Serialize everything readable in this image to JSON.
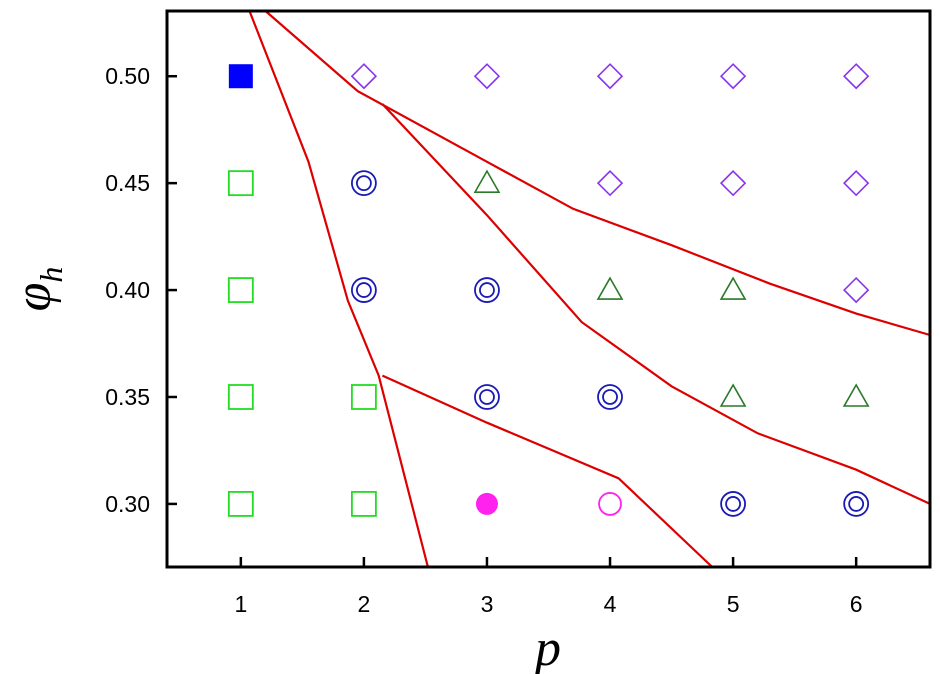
{
  "chart_data": {
    "type": "scatter",
    "title": "",
    "xlabel": "p",
    "ylabel_main": "φ",
    "ylabel_sub": "h",
    "xlim": [
      0.4,
      6.6
    ],
    "ylim": [
      0.2705,
      0.5305
    ],
    "xticks": [
      1,
      2,
      3,
      4,
      5,
      6
    ],
    "xtick_labels": [
      "1",
      "2",
      "3",
      "4",
      "5",
      "6"
    ],
    "yticks": [
      0.3,
      0.35,
      0.4,
      0.45,
      0.5
    ],
    "ytick_labels": [
      "0.30",
      "0.35",
      "0.40",
      "0.45",
      "0.50"
    ],
    "grid": false,
    "legend": "none",
    "series": [
      {
        "marker": "filled-square",
        "color": "#0000ff",
        "points": [
          [
            1,
            0.5
          ]
        ]
      },
      {
        "marker": "open-square",
        "color": "#22dd22",
        "points": [
          [
            1,
            0.45
          ],
          [
            1,
            0.4
          ],
          [
            1,
            0.35
          ],
          [
            1,
            0.3
          ],
          [
            2,
            0.35
          ],
          [
            2,
            0.3
          ]
        ]
      },
      {
        "marker": "double-circle",
        "color": "#1a1ab4",
        "points": [
          [
            2,
            0.45
          ],
          [
            2,
            0.4
          ],
          [
            3,
            0.4
          ],
          [
            3,
            0.35
          ],
          [
            4,
            0.35
          ],
          [
            5,
            0.3
          ],
          [
            6,
            0.3
          ]
        ]
      },
      {
        "marker": "open-triangle",
        "color": "#2a7a2a",
        "points": [
          [
            3,
            0.45
          ],
          [
            4,
            0.4
          ],
          [
            5,
            0.4
          ],
          [
            5,
            0.35
          ],
          [
            6,
            0.35
          ]
        ]
      },
      {
        "marker": "open-diamond",
        "color": "#8833ee",
        "points": [
          [
            2,
            0.5
          ],
          [
            3,
            0.5
          ],
          [
            4,
            0.5
          ],
          [
            5,
            0.5
          ],
          [
            6,
            0.5
          ],
          [
            4,
            0.45
          ],
          [
            5,
            0.45
          ],
          [
            6,
            0.45
          ],
          [
            6,
            0.4
          ]
        ]
      },
      {
        "marker": "filled-circle",
        "color": "#ff22ee",
        "points": [
          [
            3,
            0.3
          ]
        ]
      },
      {
        "marker": "open-circle",
        "color": "#ff22ee",
        "points": [
          [
            4,
            0.3
          ]
        ]
      }
    ],
    "boundary_color": "#dd0000",
    "boundaries": [
      [
        [
          1.07,
          0.5305
        ],
        [
          1.55,
          0.46
        ],
        [
          1.87,
          0.395
        ],
        [
          2.12,
          0.36
        ],
        [
          2.52,
          0.2705
        ]
      ],
      [
        [
          1.2,
          0.5305
        ],
        [
          1.95,
          0.493
        ],
        [
          3.0,
          0.46
        ],
        [
          3.7,
          0.438
        ],
        [
          4.5,
          0.421
        ],
        [
          5.3,
          0.403
        ],
        [
          6.0,
          0.389
        ],
        [
          6.6,
          0.379
        ]
      ],
      [
        [
          2.15,
          0.487
        ],
        [
          3.0,
          0.435
        ],
        [
          3.77,
          0.385
        ],
        [
          4.5,
          0.355
        ],
        [
          5.2,
          0.333
        ],
        [
          6.0,
          0.316
        ],
        [
          6.6,
          0.3
        ]
      ],
      [
        [
          2.15,
          0.36
        ],
        [
          3.0,
          0.338
        ],
        [
          4.07,
          0.312
        ],
        [
          4.83,
          0.2705
        ]
      ]
    ]
  }
}
